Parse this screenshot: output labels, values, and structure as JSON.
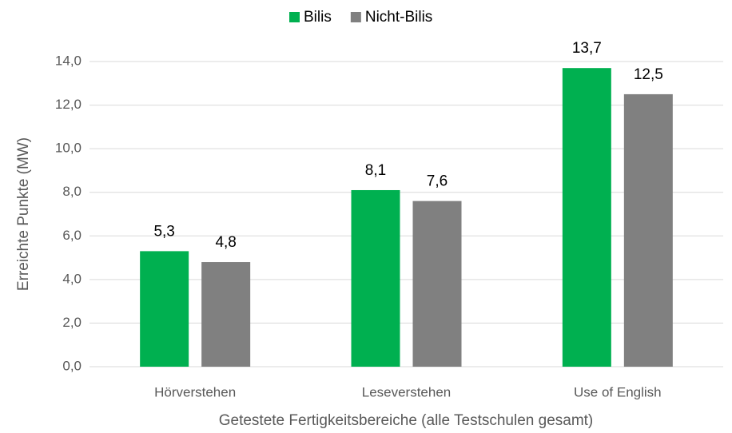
{
  "chart_data": {
    "type": "bar",
    "xlabel": "Getestete Fertigkeitsbereiche (alle Testschulen gesamt)",
    "ylabel": "Erreichte Punkte (MW)",
    "categories": [
      "Hörverstehen",
      "Leseverstehen",
      "Use of English"
    ],
    "series": [
      {
        "name": "Bilis",
        "color": "#00b050",
        "values": [
          5.3,
          8.1,
          13.7
        ],
        "value_labels": [
          "5,3",
          "8,1",
          "13,7"
        ]
      },
      {
        "name": "Nicht-Bilis",
        "color": "#808080",
        "values": [
          4.8,
          7.6,
          12.5
        ],
        "value_labels": [
          "4,8",
          "7,6",
          "12,5"
        ]
      }
    ],
    "ylim": [
      0,
      14
    ],
    "yticks": [
      {
        "value": 0,
        "label": "0,0"
      },
      {
        "value": 2,
        "label": "2,0"
      },
      {
        "value": 4,
        "label": "4,0"
      },
      {
        "value": 6,
        "label": "6,0"
      },
      {
        "value": 8,
        "label": "8,0"
      },
      {
        "value": 10,
        "label": "10,0"
      },
      {
        "value": 12,
        "label": "12,0"
      },
      {
        "value": 14,
        "label": "14,0"
      }
    ],
    "grid": true,
    "legend": "top"
  }
}
